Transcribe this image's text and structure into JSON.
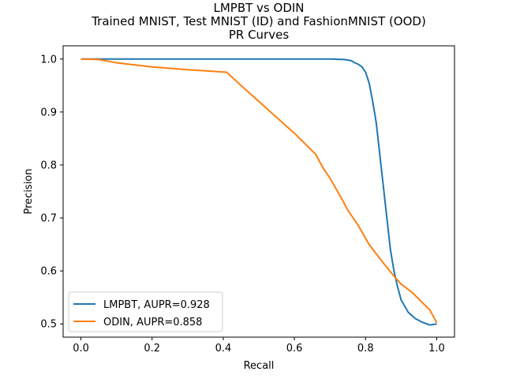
{
  "chart_data": {
    "type": "line",
    "title_lines": [
      "LMPBT vs ODIN",
      "Trained MNIST, Test MNIST (ID) and FashionMNIST (OOD)",
      "PR Curves"
    ],
    "xlabel": "Recall",
    "ylabel": "Precision",
    "xlim": [
      -0.05,
      1.05
    ],
    "ylim": [
      0.475,
      1.025
    ],
    "xticks": [
      0.0,
      0.2,
      0.4,
      0.6,
      0.8,
      1.0
    ],
    "xtick_labels": [
      "0.0",
      "0.2",
      "0.4",
      "0.6",
      "0.8",
      "1.0"
    ],
    "yticks": [
      0.5,
      0.6,
      0.7,
      0.8,
      0.9,
      1.0
    ],
    "ytick_labels": [
      "0.5",
      "0.6",
      "0.7",
      "0.8",
      "0.9",
      "1.0"
    ],
    "grid": false,
    "legend_position": "lower-left",
    "series": [
      {
        "name": "LMPBT, AUPR=0.928",
        "color": "#1f77b4",
        "x": [
          0.0,
          0.1,
          0.3,
          0.5,
          0.6,
          0.7,
          0.74,
          0.76,
          0.77,
          0.78,
          0.79,
          0.8,
          0.81,
          0.82,
          0.83,
          0.84,
          0.85,
          0.86,
          0.87,
          0.88,
          0.89,
          0.9,
          0.92,
          0.94,
          0.96,
          0.98,
          1.0
        ],
        "y": [
          1.0,
          1.0,
          1.0,
          1.0,
          1.0,
          1.0,
          0.999,
          0.997,
          0.993,
          0.99,
          0.985,
          0.975,
          0.955,
          0.92,
          0.88,
          0.82,
          0.76,
          0.7,
          0.64,
          0.6,
          0.57,
          0.545,
          0.522,
          0.51,
          0.503,
          0.498,
          0.5
        ]
      },
      {
        "name": "ODIN, AUPR=0.858",
        "color": "#ff7f0e",
        "x": [
          0.0,
          0.05,
          0.1,
          0.2,
          0.3,
          0.41,
          0.45,
          0.5,
          0.55,
          0.6,
          0.63,
          0.66,
          0.68,
          0.7,
          0.73,
          0.75,
          0.78,
          0.81,
          0.85,
          0.88,
          0.9,
          0.93,
          0.96,
          0.98,
          0.99,
          1.0
        ],
        "y": [
          1.0,
          0.999,
          0.993,
          0.985,
          0.98,
          0.975,
          0.95,
          0.92,
          0.89,
          0.86,
          0.84,
          0.82,
          0.795,
          0.775,
          0.74,
          0.715,
          0.685,
          0.65,
          0.615,
          0.59,
          0.575,
          0.56,
          0.54,
          0.527,
          0.515,
          0.502
        ]
      }
    ]
  }
}
